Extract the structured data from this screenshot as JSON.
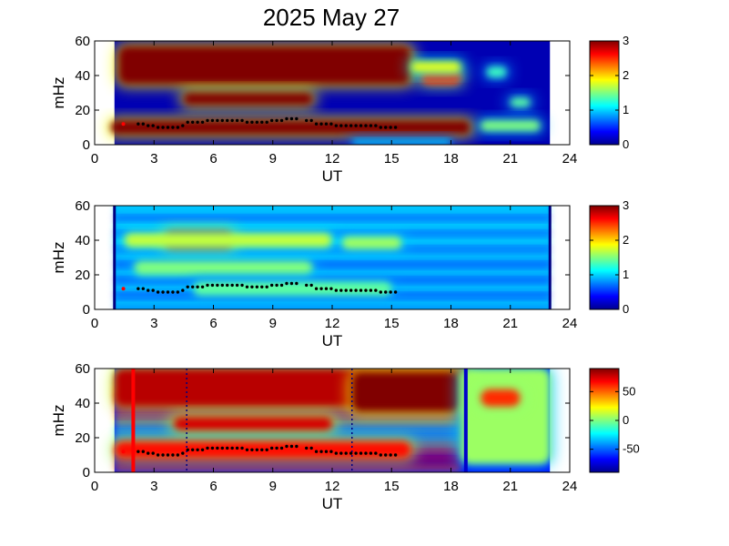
{
  "chart_data": {
    "title": "2025 May 27",
    "x_range": [
      0,
      24
    ],
    "y_range": [
      0,
      60
    ],
    "panels": [
      {
        "type": "heatmap",
        "xlabel": "UT",
        "ylabel": "mHz",
        "x_ticks": [
          "0",
          "3",
          "6",
          "9",
          "12",
          "15",
          "18",
          "21",
          "24"
        ],
        "y_ticks": [
          "0",
          "20",
          "40",
          "60"
        ],
        "data_x_range": [
          1,
          23
        ],
        "colorbar": {
          "range": [
            0,
            3
          ],
          "ticks": [
            "0",
            "1",
            "2",
            "3"
          ]
        },
        "features": [
          {
            "x": [
              1.2,
              16.0
            ],
            "y": [
              35,
              57
            ],
            "level": 3.0
          },
          {
            "x": [
              16.5,
              18.5
            ],
            "y": [
              35,
              43
            ],
            "level": 2.5
          },
          {
            "x": [
              4.5,
              11.0
            ],
            "y": [
              23,
              30
            ],
            "level": 3.0
          },
          {
            "x": [
              0.8,
              19.0
            ],
            "y": [
              6,
              14
            ],
            "level": 3.0
          },
          {
            "x": [
              19.5,
              22.5
            ],
            "y": [
              8,
              14
            ],
            "level": 1.5
          },
          {
            "x": [
              21.0,
              22.0
            ],
            "y": [
              22,
              27
            ],
            "level": 1.4
          },
          {
            "x": [
              19.8,
              20.8
            ],
            "y": [
              39,
              45
            ],
            "level": 1.3
          },
          {
            "x": [
              13.0,
              18.0
            ],
            "y": [
              0,
              3
            ],
            "level": 1.0
          },
          {
            "x": [
              16.0,
              18.5
            ],
            "y": [
              42,
              48
            ],
            "level": 1.8
          }
        ]
      },
      {
        "type": "heatmap",
        "xlabel": "UT",
        "ylabel": "mHz",
        "x_ticks": [
          "0",
          "3",
          "6",
          "9",
          "12",
          "15",
          "18",
          "21",
          "24"
        ],
        "y_ticks": [
          "0",
          "20",
          "40",
          "60"
        ],
        "data_x_range": [
          1,
          23
        ],
        "colorbar": {
          "range": [
            0,
            3
          ],
          "ticks": [
            "0",
            "1",
            "2",
            "3"
          ]
        },
        "features": [
          {
            "x": [
              3.5,
              7.0
            ],
            "y": [
              35,
              45
            ],
            "level": 2.8
          },
          {
            "x": [
              1.5,
              12.0
            ],
            "y": [
              36,
              44
            ],
            "level": 1.7
          },
          {
            "x": [
              2.0,
              11.0
            ],
            "y": [
              20,
              28
            ],
            "level": 1.5
          },
          {
            "x": [
              5.0,
              15.0
            ],
            "y": [
              8,
              16
            ],
            "level": 1.4
          },
          {
            "x": [
              12.5,
              15.5
            ],
            "y": [
              35,
              42
            ],
            "level": 1.6
          }
        ]
      },
      {
        "type": "heatmap",
        "xlabel": "UT",
        "ylabel": "mHz",
        "x_ticks": [
          "0",
          "3",
          "6",
          "9",
          "12",
          "15",
          "18",
          "21",
          "24"
        ],
        "y_ticks": [
          "0",
          "20",
          "40",
          "60"
        ],
        "data_x_range": [
          1,
          23
        ],
        "colorbar": {
          "range": [
            -90,
            90
          ],
          "ticks": [
            "50",
            "0",
            "-50"
          ],
          "tick_values": [
            50,
            0,
            -50
          ]
        },
        "features": [
          {
            "x": [
              1.0,
              19.0
            ],
            "y": [
              38,
              60
            ],
            "level": 80
          },
          {
            "x": [
              13.0,
              18.5
            ],
            "y": [
              35,
              58
            ],
            "level": 90
          },
          {
            "x": [
              4.0,
              12.0
            ],
            "y": [
              24,
              32
            ],
            "level": 75
          },
          {
            "x": [
              1.0,
              16.0
            ],
            "y": [
              8,
              18
            ],
            "level": 65
          },
          {
            "x": [
              18.5,
              23.0
            ],
            "y": [
              5,
              60
            ],
            "level": 5
          },
          {
            "x": [
              19.5,
              21.5
            ],
            "y": [
              38,
              48
            ],
            "level": 60
          }
        ],
        "vlines": [
          {
            "x": 1.95,
            "color": "#ff0000",
            "style": "solid"
          },
          {
            "x": 4.65,
            "color": "#000080",
            "style": "dotted"
          },
          {
            "x": 13.0,
            "color": "#000080",
            "style": "dotted"
          },
          {
            "x": 18.75,
            "color": "#0000cc",
            "style": "solid"
          }
        ]
      }
    ],
    "markers_series": {
      "red_point": {
        "x": 1.45,
        "y": 12
      },
      "x": [
        2.2,
        2.45,
        2.7,
        2.95,
        3.2,
        3.45,
        3.7,
        3.95,
        4.2,
        4.45,
        4.7,
        4.95,
        5.2,
        5.45,
        5.7,
        5.95,
        6.2,
        6.45,
        6.7,
        6.95,
        7.2,
        7.45,
        7.7,
        7.95,
        8.2,
        8.45,
        8.7,
        8.95,
        9.2,
        9.45,
        9.7,
        9.95,
        10.2,
        10.7,
        10.95,
        11.2,
        11.45,
        11.7,
        11.95,
        12.2,
        12.45,
        12.7,
        12.95,
        13.2,
        13.45,
        13.7,
        13.95,
        14.2,
        14.45,
        14.7,
        14.95,
        15.2
      ],
      "y": [
        12,
        12,
        11,
        11,
        10,
        10,
        10,
        10,
        10,
        11,
        13,
        13,
        13,
        13,
        14,
        14,
        14,
        14,
        14,
        14,
        14,
        14,
        13,
        13,
        13,
        13,
        13,
        14,
        14,
        14,
        15,
        15,
        15,
        14,
        14,
        12,
        12,
        12,
        12,
        11,
        11,
        11,
        11,
        11,
        11,
        11,
        11,
        11,
        10,
        10,
        10,
        10
      ]
    }
  }
}
